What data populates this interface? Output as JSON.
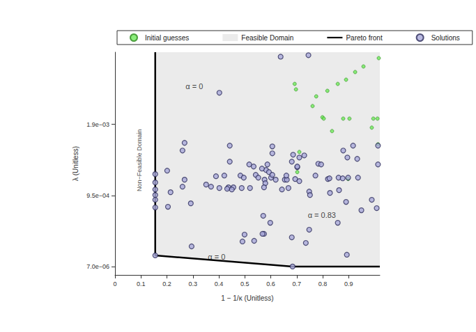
{
  "chart_data": {
    "type": "scatter",
    "xlabel": "1 − 1/κ (Unitless)",
    "ylabel": "λ (Unitless)",
    "xlim": [
      0,
      1.02
    ],
    "xticks": [
      0,
      0.1,
      0.2,
      0.3,
      0.4,
      0.5,
      0.6,
      0.7,
      0.8,
      0.9
    ],
    "ylim": [
      -0.000105,
      0.00286
    ],
    "yticks": [
      {
        "value": 7e-06,
        "label": "7.0e−06"
      },
      {
        "value": 0.00095,
        "label": "9.5e−04"
      },
      {
        "value": 0.0019,
        "label": "1.9e−03"
      }
    ],
    "grid": false,
    "legend": "top",
    "series": [
      {
        "name": "Initial guesses",
        "type": "scatter",
        "marker": "circle",
        "color": "#6ee85a",
        "x": [
          1.016,
          0.957,
          0.925,
          0.89,
          0.858,
          0.818,
          0.775,
          0.761,
          0.692,
          0.697,
          0.799,
          0.804,
          0.879,
          0.903,
          0.836,
          0.995,
          1.011,
          0.989,
          1.013,
          0.898,
          0.71,
          0.702
        ],
        "values": [
          0.002781,
          0.00267,
          0.002596,
          0.002494,
          0.002438,
          0.002346,
          0.002272,
          0.002143,
          0.002438,
          0.002365,
          0.001994,
          0.001976,
          0.001976,
          0.001976,
          0.00181,
          0.001976,
          0.001976,
          0.001856,
          0.001634,
          0.001172,
          0.001532,
          0.001264
        ]
      },
      {
        "name": "Feasible Domain",
        "type": "area",
        "color": "#ebebeb",
        "x": [
          0.155,
          0.155,
          0.684,
          1.02
        ],
        "values": [
          0.00286,
          0.000155,
          7e-06,
          7e-06
        ]
      },
      {
        "name": "Pareto front",
        "type": "line",
        "line_style": "solid",
        "color": "#000000",
        "x": [
          0.155,
          0.155,
          0.684,
          1.02
        ],
        "values": [
          0.00286,
          0.000155,
          7e-06,
          7e-06
        ]
      },
      {
        "name": "Solutions",
        "type": "scatter",
        "marker": "circle",
        "color": "#a9a9d9",
        "x": [
          0.638,
          0.745,
          0.402,
          0.155,
          0.155,
          0.155,
          0.155,
          0.155,
          0.155,
          0.155,
          0.268,
          0.26,
          0.201,
          0.214,
          0.268,
          0.26,
          0.292,
          0.204,
          0.295,
          0.351,
          0.389,
          0.442,
          0.442,
          0.456,
          0.437,
          0.488,
          0.517,
          0.587,
          0.582,
          0.593,
          0.566,
          0.571,
          0.574,
          0.536,
          0.601,
          0.606,
          0.606,
          0.686,
          0.71,
          0.729,
          0.702,
          0.783,
          0.794,
          0.772,
          0.82,
          0.861,
          0.826,
          0.694,
          0.654,
          0.662,
          0.606,
          0.619,
          0.576,
          0.542,
          0.552,
          0.483,
          0.496,
          0.421,
          0.402,
          0.37,
          0.45,
          0.432,
          0.52,
          0.579,
          0.643,
          0.668,
          0.748,
          0.751,
          0.828,
          0.702,
          0.681,
          0.66,
          0.71,
          0.863,
          0.858,
          0.748,
          0.735,
          0.681,
          0.491,
          0.499,
          0.568,
          0.598,
          0.574,
          0.534,
          0.917,
          0.879,
          0.895,
          0.933,
          1.013,
          1.013,
          0.877,
          0.898,
          0.936,
          0.89,
          0.989,
          1.008,
          0.949,
          0.893,
          0.684
        ],
        "values": [
          0.0028,
          0.00282,
          0.00232,
          0.001237,
          0.001126,
          0.001033,
          0.000959,
          0.000895,
          0.000793,
          0.000155,
          0.001653,
          0.001551,
          0.001283,
          0.000996,
          0.001163,
          0.00107,
          0.000848,
          0.000802,
          0.000275,
          0.001098,
          0.001209,
          0.001616,
          0.001403,
          0.001061,
          0.001061,
          0.001052,
          0.001366,
          0.001366,
          0.001292,
          0.001264,
          0.001311,
          0.000682,
          0.000442,
          0.000349,
          0.00119,
          0.001606,
          0.001514,
          0.001495,
          0.001458,
          0.001486,
          0.001329,
          0.001375,
          0.001366,
          0.001218,
          0.001172,
          0.00119,
          0.001181,
          0.001172,
          0.001163,
          0.001163,
          0.001227,
          0.001163,
          0.001163,
          0.001227,
          0.00119,
          0.001218,
          0.00119,
          0.001218,
          0.001052,
          0.00107,
          0.001033,
          0.001042,
          0.001052,
          0.001116,
          0.001033,
          0.001052,
          0.001005,
          0.000959,
          0.000987,
          0.001338,
          0.001403,
          0.001218,
          0.001144,
          0.001024,
          0.000589,
          0.000497,
          0.000321,
          0.000395,
          0.00034,
          0.000432,
          0.000442,
          0.000589,
          0.001061,
          0.001338,
          0.001616,
          0.001551,
          0.001458,
          0.00144,
          0.001616,
          0.001366,
          0.001181,
          0.00119,
          0.00119,
          0.000867,
          0.000895,
          0.000784,
          0.000756,
          0.000164,
          7e-06
        ]
      }
    ],
    "annotations": [
      {
        "text": "α = 0",
        "x": 0.155,
        "y": 0.001237
      },
      {
        "text": "α = 0",
        "x": 0.155,
        "y": 0.000155
      },
      {
        "text": "α = 0.83",
        "x": 0.684,
        "y": 7e-06
      }
    ],
    "region_label": {
      "text": "Non−Feasible Domain",
      "x": 0.094,
      "y": 0.00142
    }
  }
}
